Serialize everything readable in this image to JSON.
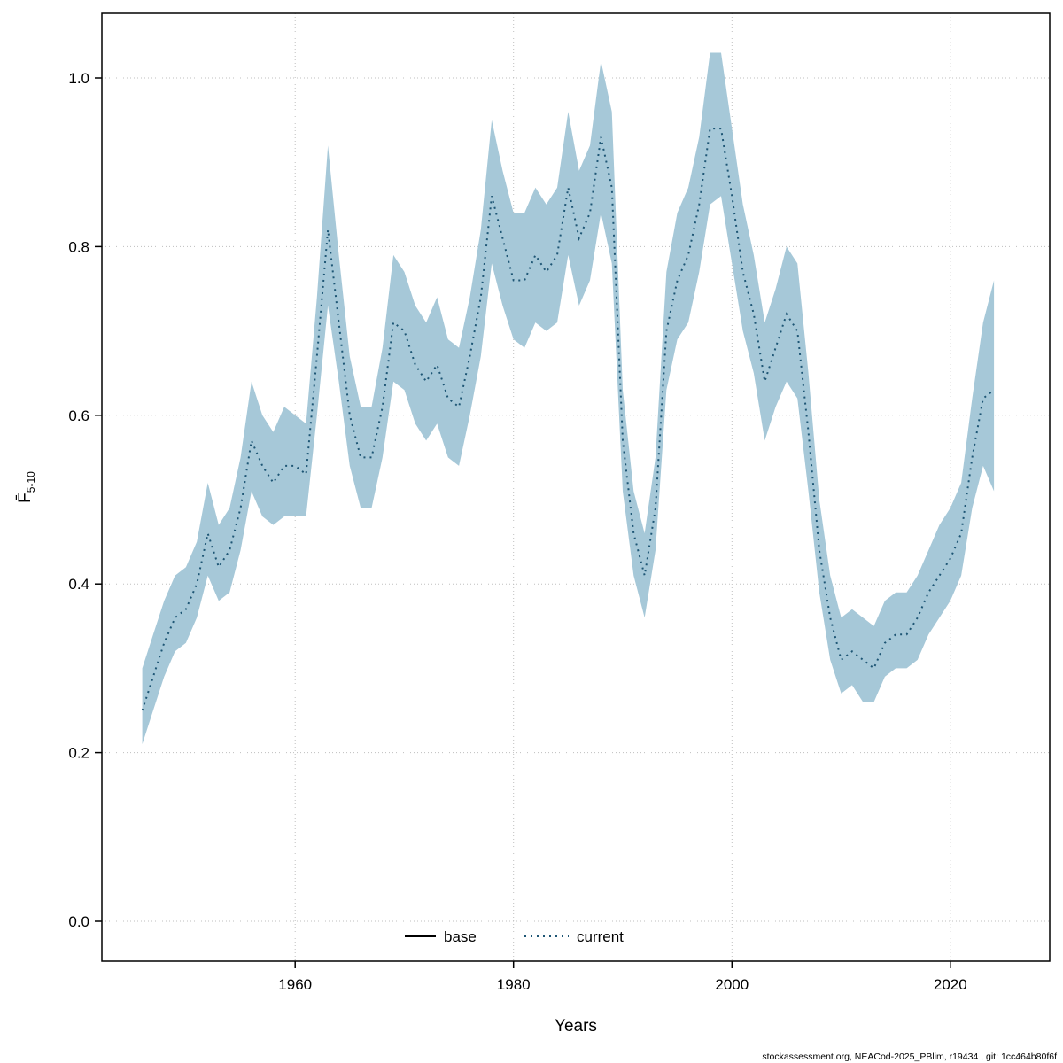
{
  "page": {
    "footer": "stockassessment.org, NEACod-2025_PBlim, r19434 , git: 1cc464b80f6f"
  },
  "axes": {
    "xlabel": "Years",
    "ylabel_main": "F̄",
    "ylabel_sub": "5-10"
  },
  "legend": {
    "items": [
      {
        "label": "base",
        "style": "solid",
        "color": "#000000"
      },
      {
        "label": "current",
        "style": "dotted",
        "color": "#1d5574"
      }
    ]
  },
  "chart_data": {
    "type": "line",
    "title": "",
    "xlabel": "Years",
    "ylabel": "Fbar(5-10)",
    "xlim": [
      1942.3,
      2029.1
    ],
    "ylim": [
      -0.0473,
      1.0767
    ],
    "xticks": [
      1960,
      1980,
      2000,
      2020
    ],
    "yticks": [
      0.0,
      0.2,
      0.4,
      0.6,
      0.8,
      1.0
    ],
    "grid": true,
    "band_color": "#a6c8d8",
    "line_color": "#1d5574",
    "x": [
      1946,
      1947,
      1948,
      1949,
      1950,
      1951,
      1952,
      1953,
      1954,
      1955,
      1956,
      1957,
      1958,
      1959,
      1960,
      1961,
      1962,
      1963,
      1964,
      1965,
      1966,
      1967,
      1968,
      1969,
      1970,
      1971,
      1972,
      1973,
      1974,
      1975,
      1976,
      1977,
      1978,
      1979,
      1980,
      1981,
      1982,
      1983,
      1984,
      1985,
      1986,
      1987,
      1988,
      1989,
      1990,
      1991,
      1992,
      1993,
      1994,
      1995,
      1996,
      1997,
      1998,
      1999,
      2000,
      2001,
      2002,
      2003,
      2004,
      2005,
      2006,
      2007,
      2008,
      2009,
      2010,
      2011,
      2012,
      2013,
      2014,
      2015,
      2016,
      2017,
      2018,
      2019,
      2020,
      2021,
      2022,
      2023,
      2024
    ],
    "series": [
      {
        "name": "current",
        "values": [
          0.25,
          0.29,
          0.33,
          0.36,
          0.37,
          0.4,
          0.46,
          0.42,
          0.44,
          0.49,
          0.57,
          0.54,
          0.52,
          0.54,
          0.54,
          0.53,
          0.67,
          0.82,
          0.71,
          0.6,
          0.55,
          0.55,
          0.61,
          0.71,
          0.7,
          0.66,
          0.64,
          0.66,
          0.62,
          0.61,
          0.67,
          0.74,
          0.86,
          0.81,
          0.76,
          0.76,
          0.79,
          0.77,
          0.79,
          0.87,
          0.81,
          0.84,
          0.93,
          0.87,
          0.57,
          0.46,
          0.41,
          0.49,
          0.7,
          0.76,
          0.79,
          0.85,
          0.94,
          0.94,
          0.86,
          0.77,
          0.72,
          0.64,
          0.68,
          0.72,
          0.7,
          0.58,
          0.44,
          0.36,
          0.31,
          0.32,
          0.31,
          0.3,
          0.33,
          0.34,
          0.34,
          0.36,
          0.39,
          0.41,
          0.43,
          0.46,
          0.55,
          0.62,
          0.63
        ],
        "lower": [
          0.21,
          0.25,
          0.29,
          0.32,
          0.33,
          0.36,
          0.41,
          0.38,
          0.39,
          0.44,
          0.51,
          0.48,
          0.47,
          0.48,
          0.48,
          0.48,
          0.6,
          0.73,
          0.64,
          0.54,
          0.49,
          0.49,
          0.55,
          0.64,
          0.63,
          0.59,
          0.57,
          0.59,
          0.55,
          0.54,
          0.6,
          0.67,
          0.78,
          0.73,
          0.69,
          0.68,
          0.71,
          0.7,
          0.71,
          0.79,
          0.73,
          0.76,
          0.84,
          0.78,
          0.51,
          0.41,
          0.36,
          0.44,
          0.63,
          0.69,
          0.71,
          0.77,
          0.85,
          0.86,
          0.78,
          0.7,
          0.65,
          0.57,
          0.61,
          0.64,
          0.62,
          0.51,
          0.39,
          0.31,
          0.27,
          0.28,
          0.26,
          0.26,
          0.29,
          0.3,
          0.3,
          0.31,
          0.34,
          0.36,
          0.38,
          0.41,
          0.49,
          0.54,
          0.51
        ],
        "upper": [
          0.3,
          0.34,
          0.38,
          0.41,
          0.42,
          0.45,
          0.52,
          0.47,
          0.49,
          0.55,
          0.64,
          0.6,
          0.58,
          0.61,
          0.6,
          0.59,
          0.74,
          0.92,
          0.79,
          0.67,
          0.61,
          0.61,
          0.68,
          0.79,
          0.77,
          0.73,
          0.71,
          0.74,
          0.69,
          0.68,
          0.74,
          0.82,
          0.95,
          0.89,
          0.84,
          0.84,
          0.87,
          0.85,
          0.87,
          0.96,
          0.89,
          0.92,
          1.02,
          0.96,
          0.63,
          0.51,
          0.46,
          0.55,
          0.77,
          0.84,
          0.87,
          0.93,
          1.03,
          1.03,
          0.94,
          0.85,
          0.79,
          0.71,
          0.75,
          0.8,
          0.78,
          0.65,
          0.5,
          0.41,
          0.36,
          0.37,
          0.36,
          0.35,
          0.38,
          0.39,
          0.39,
          0.41,
          0.44,
          0.47,
          0.49,
          0.52,
          0.62,
          0.71,
          0.76
        ]
      }
    ]
  }
}
